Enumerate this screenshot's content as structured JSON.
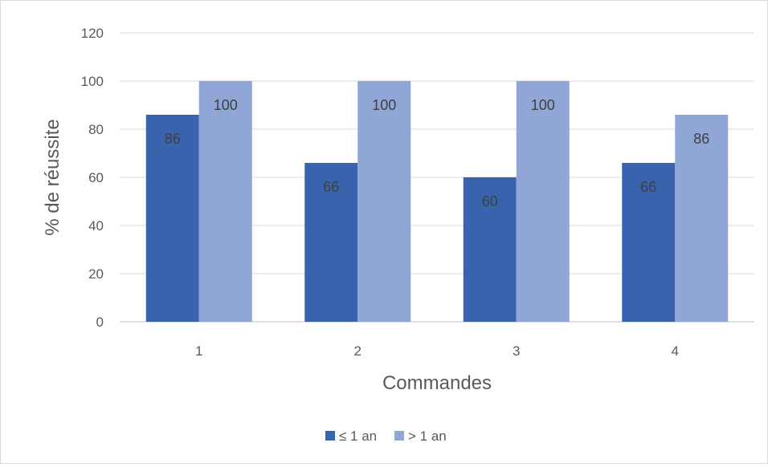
{
  "chart_data": {
    "type": "bar",
    "categories": [
      "1",
      "2",
      "3",
      "4"
    ],
    "series": [
      {
        "name": "≤ 1 an",
        "values": [
          86,
          66,
          60,
          66
        ],
        "color": "#3a63ad"
      },
      {
        "name": "> 1 an",
        "values": [
          100,
          100,
          100,
          86
        ],
        "color": "#8fa6d6"
      }
    ],
    "title": "",
    "xlabel": "Commandes",
    "ylabel": "% de réussite",
    "ylim": [
      0,
      120
    ],
    "yticks": [
      0,
      20,
      40,
      60,
      80,
      100,
      120
    ],
    "grid": true,
    "legend_position": "bottom",
    "data_labels": true
  }
}
